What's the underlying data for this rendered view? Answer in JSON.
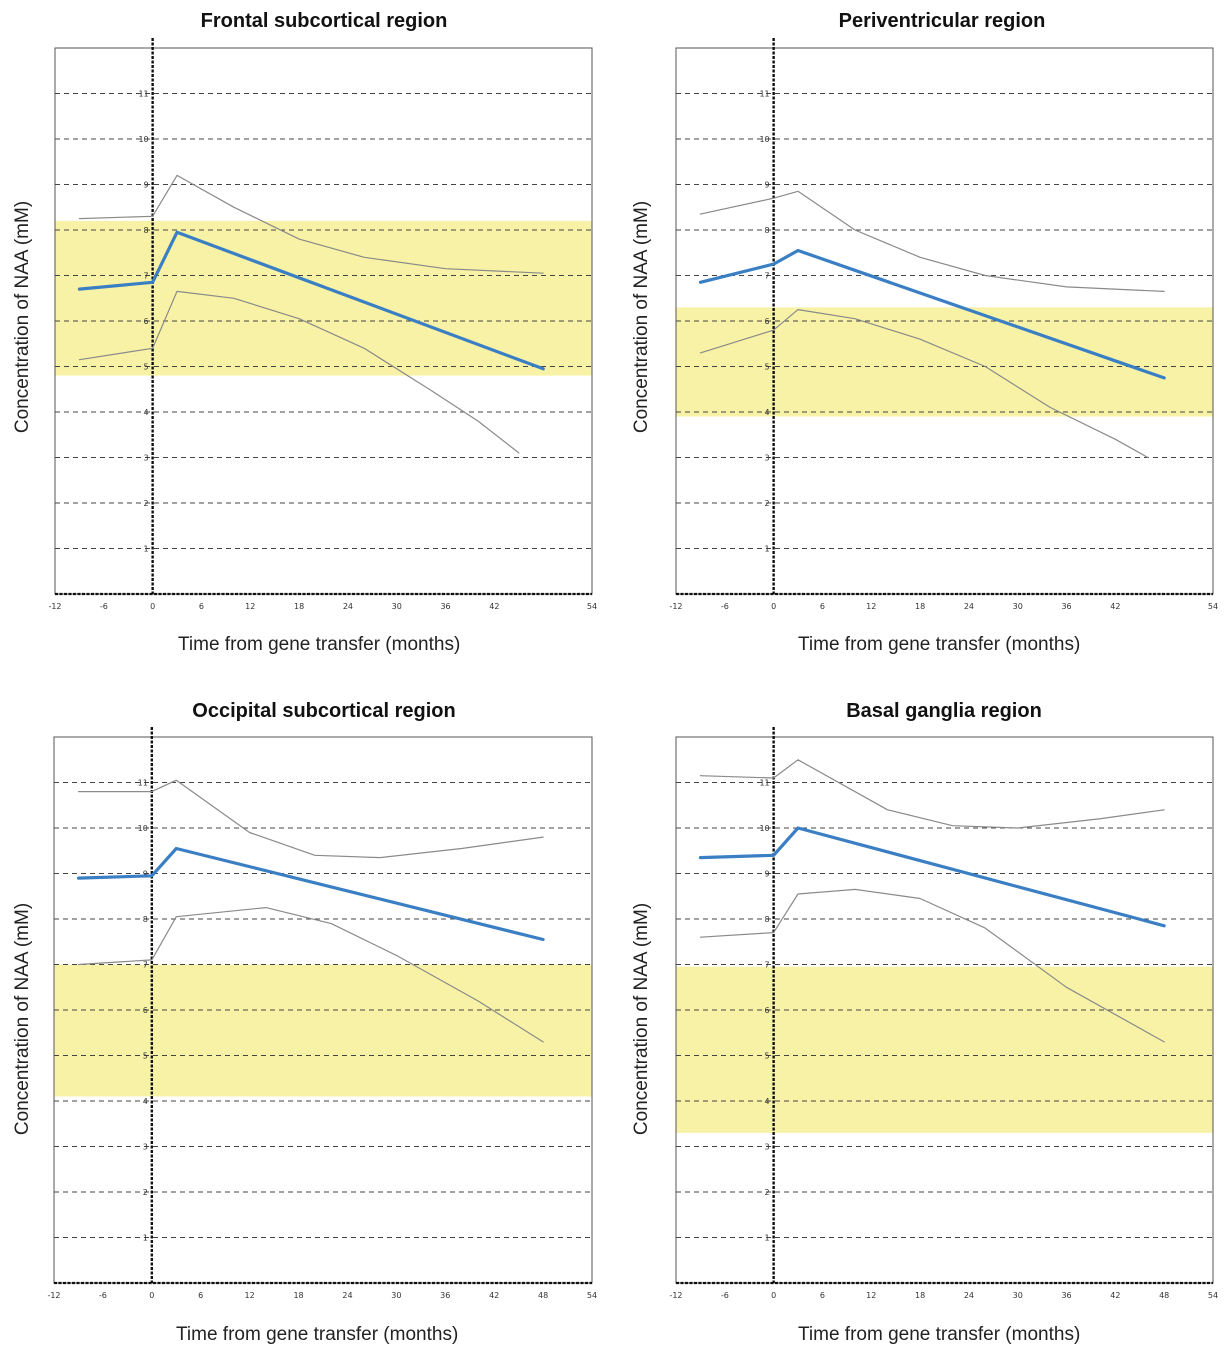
{
  "chart_data": [
    {
      "type": "line",
      "title": "Frontal subcortical region",
      "xlabel": "Time from gene transfer (months)",
      "ylabel": "Concentration of NAA (mM)",
      "xlim": [
        -12,
        54
      ],
      "ylim": [
        0,
        12
      ],
      "xticks": [
        -12,
        -6,
        0,
        6,
        12,
        18,
        24,
        30,
        36,
        42,
        54
      ],
      "yticks": [
        1,
        2,
        3,
        4,
        5,
        6,
        7,
        8,
        9,
        10,
        11
      ],
      "normal_range": [
        4.8,
        8.2
      ],
      "gene_transfer_x": 0,
      "series": [
        {
          "role": "mean",
          "color": "#3a7fc4",
          "points": [
            [
              -9,
              6.7
            ],
            [
              0,
              6.85
            ],
            [
              3,
              7.95
            ],
            [
              48,
              4.95
            ]
          ]
        },
        {
          "role": "upper",
          "color": "#8a8a8a",
          "points": [
            [
              -9,
              8.25
            ],
            [
              0,
              8.3
            ],
            [
              3,
              9.2
            ],
            [
              10,
              8.5
            ],
            [
              18,
              7.8
            ],
            [
              26,
              7.4
            ],
            [
              36,
              7.15
            ],
            [
              48,
              7.05
            ]
          ]
        },
        {
          "role": "lower",
          "color": "#8a8a8a",
          "points": [
            [
              -9,
              5.15
            ],
            [
              0,
              5.4
            ],
            [
              3,
              6.65
            ],
            [
              10,
              6.5
            ],
            [
              18,
              6.05
            ],
            [
              26,
              5.4
            ],
            [
              34,
              4.5
            ],
            [
              40,
              3.8
            ],
            [
              45,
              3.1
            ]
          ]
        }
      ]
    },
    {
      "type": "line",
      "title": "Periventricular region",
      "xlabel": "Time from gene transfer (months)",
      "ylabel": "Concentration of NAA (mM)",
      "xlim": [
        -12,
        54
      ],
      "ylim": [
        0,
        12
      ],
      "xticks": [
        -12,
        -6,
        0,
        6,
        12,
        18,
        24,
        30,
        36,
        42,
        54
      ],
      "yticks": [
        1,
        2,
        3,
        4,
        5,
        6,
        7,
        8,
        9,
        10,
        11
      ],
      "normal_range": [
        3.9,
        6.3
      ],
      "gene_transfer_x": 0,
      "series": [
        {
          "role": "mean",
          "color": "#3a7fc4",
          "points": [
            [
              -9,
              6.85
            ],
            [
              0,
              7.25
            ],
            [
              3,
              7.55
            ],
            [
              48,
              4.75
            ]
          ]
        },
        {
          "role": "upper",
          "color": "#8a8a8a",
          "points": [
            [
              -9,
              8.35
            ],
            [
              0,
              8.7
            ],
            [
              3,
              8.85
            ],
            [
              10,
              8.0
            ],
            [
              18,
              7.4
            ],
            [
              26,
              7.0
            ],
            [
              36,
              6.75
            ],
            [
              48,
              6.65
            ]
          ]
        },
        {
          "role": "lower",
          "color": "#8a8a8a",
          "points": [
            [
              -9,
              5.3
            ],
            [
              0,
              5.8
            ],
            [
              3,
              6.25
            ],
            [
              10,
              6.05
            ],
            [
              18,
              5.6
            ],
            [
              26,
              5.0
            ],
            [
              34,
              4.1
            ],
            [
              42,
              3.4
            ],
            [
              46,
              3.0
            ]
          ]
        }
      ]
    },
    {
      "type": "line",
      "title": "Occipital subcortical region",
      "xlabel": "Time from gene transfer (months)",
      "ylabel": "Concentration of NAA (mM)",
      "xlim": [
        -12,
        54
      ],
      "ylim": [
        0,
        12
      ],
      "xticks": [
        -12,
        -6,
        0,
        6,
        12,
        18,
        24,
        30,
        36,
        42,
        48,
        54
      ],
      "yticks": [
        1,
        2,
        3,
        4,
        5,
        6,
        7,
        8,
        9,
        10,
        11
      ],
      "normal_range": [
        4.1,
        7.0
      ],
      "gene_transfer_x": 0,
      "series": [
        {
          "role": "mean",
          "color": "#3a7fc4",
          "points": [
            [
              -9,
              8.9
            ],
            [
              0,
              8.95
            ],
            [
              3,
              9.55
            ],
            [
              48,
              7.55
            ]
          ]
        },
        {
          "role": "upper",
          "color": "#8a8a8a",
          "points": [
            [
              -9,
              10.8
            ],
            [
              0,
              10.8
            ],
            [
              3,
              11.05
            ],
            [
              12,
              9.9
            ],
            [
              20,
              9.4
            ],
            [
              28,
              9.35
            ],
            [
              38,
              9.55
            ],
            [
              48,
              9.8
            ]
          ]
        },
        {
          "role": "lower",
          "color": "#8a8a8a",
          "points": [
            [
              -9,
              7.0
            ],
            [
              0,
              7.1
            ],
            [
              3,
              8.05
            ],
            [
              14,
              8.25
            ],
            [
              22,
              7.9
            ],
            [
              30,
              7.2
            ],
            [
              40,
              6.2
            ],
            [
              48,
              5.3
            ]
          ]
        }
      ]
    },
    {
      "type": "line",
      "title": "Basal ganglia region",
      "xlabel": "Time from gene transfer (months)",
      "ylabel": "Concentration of NAA (mM)",
      "xlim": [
        -12,
        54
      ],
      "ylim": [
        0,
        12
      ],
      "xticks": [
        -12,
        -6,
        0,
        6,
        12,
        18,
        24,
        30,
        36,
        42,
        48,
        54
      ],
      "yticks": [
        1,
        2,
        3,
        4,
        5,
        6,
        7,
        8,
        9,
        10,
        11
      ],
      "normal_range": [
        3.3,
        6.95
      ],
      "gene_transfer_x": 0,
      "series": [
        {
          "role": "mean",
          "color": "#3a7fc4",
          "points": [
            [
              -9,
              9.35
            ],
            [
              0,
              9.4
            ],
            [
              3,
              10.0
            ],
            [
              48,
              7.85
            ]
          ]
        },
        {
          "role": "upper",
          "color": "#8a8a8a",
          "points": [
            [
              -9,
              11.15
            ],
            [
              0,
              11.1
            ],
            [
              3,
              11.5
            ],
            [
              14,
              10.4
            ],
            [
              22,
              10.05
            ],
            [
              30,
              10.0
            ],
            [
              40,
              10.2
            ],
            [
              48,
              10.4
            ]
          ]
        },
        {
          "role": "lower",
          "color": "#8a8a8a",
          "points": [
            [
              -9,
              7.6
            ],
            [
              0,
              7.7
            ],
            [
              3,
              8.55
            ],
            [
              10,
              8.65
            ],
            [
              18,
              8.45
            ],
            [
              26,
              7.8
            ],
            [
              36,
              6.5
            ],
            [
              48,
              5.3
            ]
          ]
        }
      ]
    }
  ],
  "colors": {
    "normal_band": "#f8f2a6",
    "grid": "#444444",
    "axis": "#111111",
    "arrow": "#e8392a"
  }
}
